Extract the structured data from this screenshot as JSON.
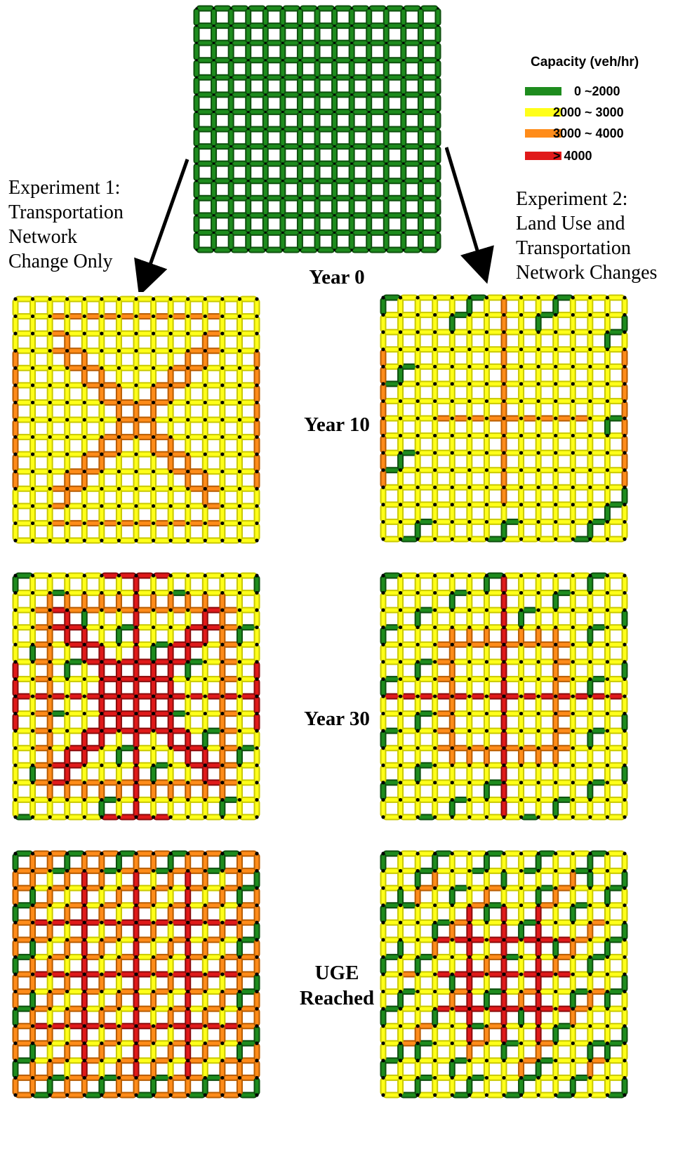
{
  "legend": {
    "title": "Capacity (veh/hr)",
    "items": [
      {
        "label": "0 ~2000",
        "color": "#1e8c1e"
      },
      {
        "label": "2000 ~ 3000",
        "color": "#ffff1a"
      },
      {
        "label": "3000 ~ 4000",
        "color": "#ff8c1a"
      },
      {
        "label": "> 4000",
        "color": "#e01a1a"
      }
    ]
  },
  "experiments": {
    "left": {
      "lines": [
        "Experiment 1:",
        "Transportation",
        "Network",
        "Change Only"
      ]
    },
    "right": {
      "lines": [
        "Experiment 2:",
        "Land Use and",
        "Transportation",
        "Network Changes"
      ]
    }
  },
  "stages": {
    "year0": "Year 0",
    "year10": "Year 10",
    "year30": "Year 30",
    "uge_line1": "UGE",
    "uge_line2": "Reached"
  },
  "grid": {
    "nodes_per_side": 15,
    "panels": [
      {
        "id": "year0",
        "pattern": "initial"
      },
      {
        "id": "exp1-year10",
        "pattern": "exp1-year10"
      },
      {
        "id": "exp2-year10",
        "pattern": "exp2-year10"
      },
      {
        "id": "exp1-year30",
        "pattern": "exp1-year30"
      },
      {
        "id": "exp2-year30",
        "pattern": "exp2-year30"
      },
      {
        "id": "exp1-uge",
        "pattern": "exp1-uge"
      },
      {
        "id": "exp2-uge",
        "pattern": "exp2-uge"
      }
    ]
  }
}
